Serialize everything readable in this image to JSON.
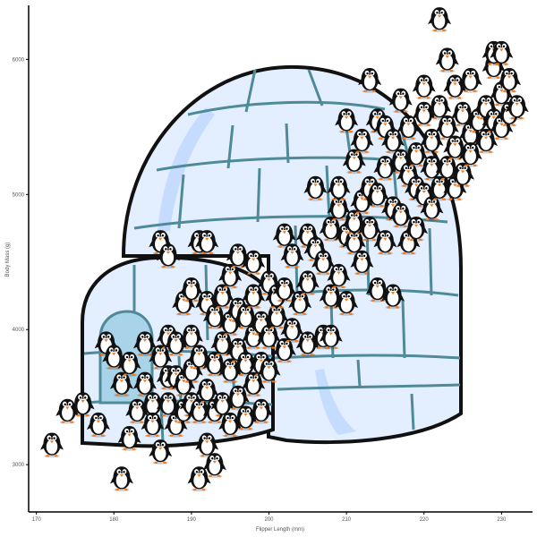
{
  "colors": {
    "background": "#ffffff",
    "axis": "#000000",
    "tick_text": "#555555",
    "igloo_fill": "#e3efff",
    "igloo_shade": "#c5dcff",
    "igloo_line": "#4f8a99",
    "igloo_outline": "#111111",
    "penguin_body": "#111111",
    "penguin_belly": "#ffffff",
    "penguin_beak": "#f47a1c"
  },
  "icons": {
    "marker": "penguin-icon",
    "background_art": "igloo-illustration"
  },
  "chart_data": {
    "type": "scatter",
    "title": "",
    "xlabel": "Flipper Length (mm)",
    "ylabel": "Body Mass (g)",
    "xlim": [
      169,
      234
    ],
    "ylim": [
      2650,
      6400
    ],
    "x_ticks": [
      170,
      180,
      190,
      200,
      210,
      220,
      230
    ],
    "y_ticks": [
      3000,
      4000,
      5000,
      6000
    ],
    "grid": false,
    "legend": "none",
    "marker": "penguin-icon",
    "points": [
      [
        172,
        3150
      ],
      [
        174,
        3400
      ],
      [
        176,
        3450
      ],
      [
        178,
        3300
      ],
      [
        179,
        3900
      ],
      [
        180,
        3800
      ],
      [
        181,
        2900
      ],
      [
        181,
        3600
      ],
      [
        182,
        3750
      ],
      [
        182,
        3200
      ],
      [
        183,
        3400
      ],
      [
        184,
        3900
      ],
      [
        184,
        3600
      ],
      [
        185,
        3450
      ],
      [
        185,
        3300
      ],
      [
        186,
        4650
      ],
      [
        186,
        3800
      ],
      [
        186,
        3100
      ],
      [
        187,
        4550
      ],
      [
        187,
        3450
      ],
      [
        187,
        3650
      ],
      [
        187,
        3950
      ],
      [
        188,
        3300
      ],
      [
        188,
        3650
      ],
      [
        188,
        3900
      ],
      [
        189,
        3400
      ],
      [
        189,
        4200
      ],
      [
        189,
        3600
      ],
      [
        190,
        3700
      ],
      [
        190,
        3450
      ],
      [
        190,
        3950
      ],
      [
        190,
        4300
      ],
      [
        191,
        4650
      ],
      [
        191,
        3800
      ],
      [
        191,
        3400
      ],
      [
        191,
        2900
      ],
      [
        192,
        3550
      ],
      [
        192,
        3150
      ],
      [
        192,
        4200
      ],
      [
        192,
        4650
      ],
      [
        193,
        3000
      ],
      [
        193,
        3750
      ],
      [
        193,
        3400
      ],
      [
        193,
        4100
      ],
      [
        194,
        3900
      ],
      [
        194,
        3450
      ],
      [
        194,
        4250
      ],
      [
        195,
        3300
      ],
      [
        195,
        3700
      ],
      [
        195,
        4050
      ],
      [
        195,
        4400
      ],
      [
        196,
        3500
      ],
      [
        196,
        3850
      ],
      [
        196,
        4150
      ],
      [
        196,
        4550
      ],
      [
        197,
        3350
      ],
      [
        197,
        3750
      ],
      [
        197,
        4100
      ],
      [
        198,
        3600
      ],
      [
        198,
        3950
      ],
      [
        198,
        4250
      ],
      [
        198,
        4500
      ],
      [
        199,
        3750
      ],
      [
        199,
        3400
      ],
      [
        199,
        4050
      ],
      [
        200,
        3700
      ],
      [
        200,
        4350
      ],
      [
        200,
        3950
      ],
      [
        201,
        4100
      ],
      [
        201,
        4250
      ],
      [
        202,
        3850
      ],
      [
        202,
        4700
      ],
      [
        202,
        4300
      ],
      [
        203,
        4000
      ],
      [
        203,
        4550
      ],
      [
        204,
        4200
      ],
      [
        205,
        3900
      ],
      [
        205,
        4700
      ],
      [
        205,
        4350
      ],
      [
        206,
        5050
      ],
      [
        206,
        4600
      ],
      [
        207,
        3950
      ],
      [
        207,
        4500
      ],
      [
        208,
        3950
      ],
      [
        208,
        4750
      ],
      [
        208,
        4250
      ],
      [
        209,
        4400
      ],
      [
        209,
        4900
      ],
      [
        209,
        5050
      ],
      [
        210,
        4200
      ],
      [
        210,
        4700
      ],
      [
        210,
        5550
      ],
      [
        211,
        4650
      ],
      [
        211,
        5250
      ],
      [
        211,
        4800
      ],
      [
        212,
        4500
      ],
      [
        212,
        5400
      ],
      [
        212,
        4950
      ],
      [
        213,
        4750
      ],
      [
        213,
        5050
      ],
      [
        213,
        5850
      ],
      [
        214,
        4300
      ],
      [
        214,
        5000
      ],
      [
        214,
        5550
      ],
      [
        215,
        4650
      ],
      [
        215,
        5200
      ],
      [
        215,
        5500
      ],
      [
        216,
        4250
      ],
      [
        216,
        4900
      ],
      [
        216,
        5400
      ],
      [
        217,
        4850
      ],
      [
        217,
        5250
      ],
      [
        217,
        5700
      ],
      [
        218,
        4650
      ],
      [
        218,
        5150
      ],
      [
        218,
        5500
      ],
      [
        219,
        5050
      ],
      [
        219,
        4750
      ],
      [
        219,
        5300
      ],
      [
        220,
        5600
      ],
      [
        220,
        5000
      ],
      [
        220,
        5800
      ],
      [
        221,
        5200
      ],
      [
        221,
        5400
      ],
      [
        221,
        4900
      ],
      [
        222,
        5050
      ],
      [
        222,
        5650
      ],
      [
        222,
        6300
      ],
      [
        223,
        5200
      ],
      [
        223,
        5500
      ],
      [
        223,
        6000
      ],
      [
        224,
        5050
      ],
      [
        224,
        5350
      ],
      [
        224,
        5800
      ],
      [
        225,
        5600
      ],
      [
        225,
        5150
      ],
      [
        226,
        5450
      ],
      [
        226,
        5300
      ],
      [
        226,
        5850
      ],
      [
        227,
        5550
      ],
      [
        228,
        5400
      ],
      [
        228,
        5650
      ],
      [
        229,
        5550
      ],
      [
        229,
        5950
      ],
      [
        229,
        6050
      ],
      [
        230,
        5500
      ],
      [
        230,
        5750
      ],
      [
        230,
        6050
      ],
      [
        231,
        5600
      ],
      [
        231,
        5850
      ],
      [
        232,
        5650
      ]
    ]
  }
}
